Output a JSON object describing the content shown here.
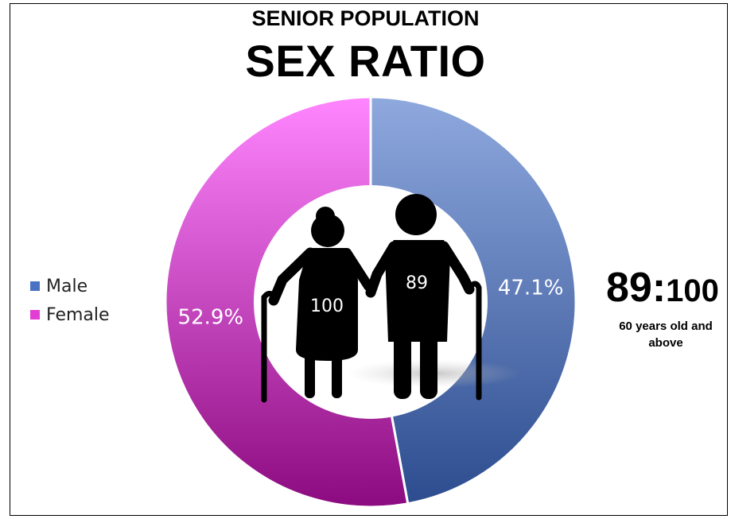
{
  "chart_data": {
    "type": "pie",
    "subtitle": "SENIOR POPULATION",
    "title": "SEX RATIO",
    "series": [
      {
        "name": "Male",
        "value": 47.1,
        "label": "47.1%",
        "color": "#4a6fbd"
      },
      {
        "name": "Female",
        "value": 52.9,
        "label": "52.9%",
        "color": "#e23ed4"
      }
    ],
    "legend_position": "left",
    "center_labels": {
      "female_figure": "100",
      "male_figure": "89"
    }
  },
  "ratio": {
    "male": "89:",
    "female": "100"
  },
  "ratio_note": "60 years old and above",
  "icons": {
    "center": "elderly-couple-icon"
  }
}
